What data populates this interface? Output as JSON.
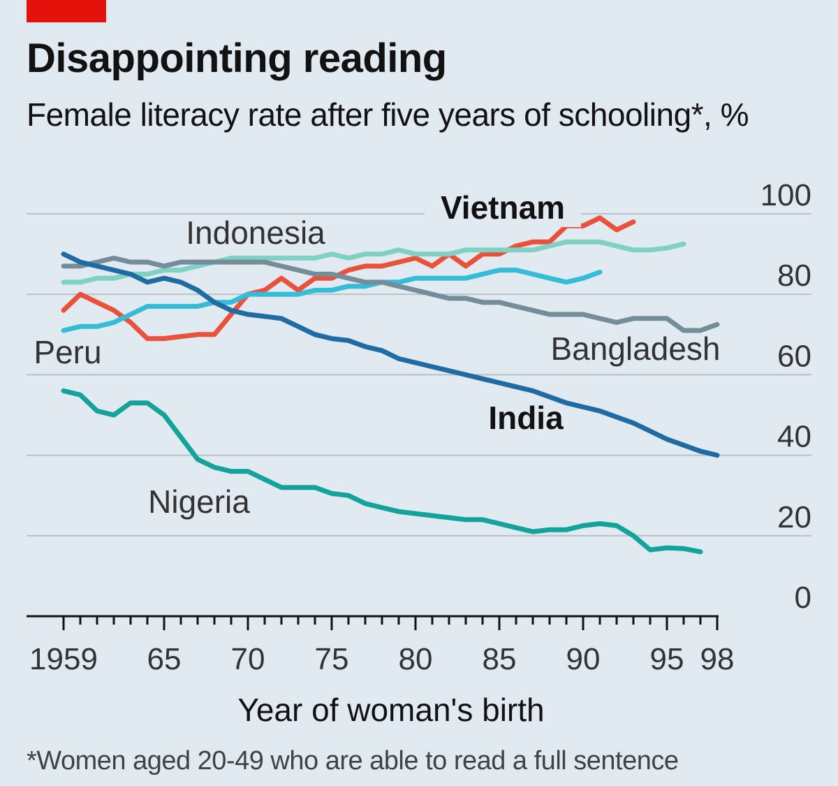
{
  "header": {
    "title": "Disappointing reading",
    "subtitle": "Female literacy rate after five years of schooling*, %"
  },
  "footnote": "*Women aged 20-49 who are able to read a full sentence",
  "colors": {
    "accent": "#e3120b",
    "background": "#e2eaf1"
  },
  "chart_data": {
    "type": "line",
    "title": "Disappointing reading",
    "subtitle": "Female literacy rate after five years of schooling*, %",
    "xlabel": "Year of woman's birth",
    "ylabel": "%",
    "xlim": [
      1959,
      1998
    ],
    "ylim": [
      0,
      100
    ],
    "grid": true,
    "y_ticks": [
      0,
      20,
      40,
      60,
      80,
      100
    ],
    "y_tick_labels": [
      "0",
      "20",
      "40",
      "60",
      "80",
      "100"
    ],
    "x_ticks": [
      1959,
      1965,
      1970,
      1975,
      1980,
      1985,
      1990,
      1995,
      1998
    ],
    "x_tick_labels": [
      "1959",
      "65",
      "70",
      "75",
      "80",
      "85",
      "90",
      "95",
      "98"
    ],
    "series": [
      {
        "name": "Vietnam",
        "label": "Vietnam",
        "color": "#e9513a",
        "bold": true,
        "x": [
          1959,
          1960,
          1961,
          1962,
          1963,
          1964,
          1965,
          1966,
          1967,
          1968,
          1969,
          1970,
          1971,
          1972,
          1973,
          1974,
          1975,
          1976,
          1977,
          1978,
          1979,
          1980,
          1981,
          1982,
          1983,
          1984,
          1985,
          1986,
          1987,
          1988,
          1989,
          1990,
          1991,
          1992,
          1993
        ],
        "y": [
          76,
          80,
          78,
          76,
          73,
          69,
          69,
          69.5,
          70,
          70,
          75,
          80,
          81,
          84,
          81,
          84,
          84,
          86,
          87,
          87,
          88,
          89,
          87,
          90,
          87,
          90,
          90,
          92,
          93,
          93,
          97,
          97,
          99,
          96,
          98
        ]
      },
      {
        "name": "Indonesia",
        "label": "Indonesia",
        "color": "#7fd1c3",
        "bold": false,
        "x": [
          1959,
          1960,
          1961,
          1962,
          1963,
          1964,
          1965,
          1966,
          1967,
          1968,
          1969,
          1970,
          1971,
          1972,
          1973,
          1974,
          1975,
          1976,
          1977,
          1978,
          1979,
          1980,
          1981,
          1982,
          1983,
          1984,
          1985,
          1986,
          1987,
          1988,
          1989,
          1990,
          1991,
          1992,
          1993,
          1994,
          1995,
          1996
        ],
        "y": [
          83,
          83,
          84,
          84,
          85,
          85,
          86,
          86,
          87,
          88,
          89,
          89,
          89,
          89,
          89,
          89,
          90,
          89,
          90,
          90,
          91,
          90,
          90,
          90,
          91,
          91,
          91,
          91,
          91,
          92,
          93,
          93,
          93,
          92,
          91,
          91,
          91.5,
          92.5
        ]
      },
      {
        "name": "Peru",
        "label": "Peru",
        "color": "#35bdd7",
        "bold": false,
        "x": [
          1959,
          1960,
          1961,
          1962,
          1963,
          1964,
          1965,
          1966,
          1967,
          1968,
          1969,
          1970,
          1971,
          1972,
          1973,
          1974,
          1975,
          1976,
          1977,
          1978,
          1979,
          1980,
          1981,
          1982,
          1983,
          1984,
          1985,
          1986,
          1987,
          1988,
          1989,
          1990,
          1991
        ],
        "y": [
          71,
          72,
          72,
          73,
          75,
          77,
          77,
          77,
          77,
          78,
          78,
          80,
          80,
          80,
          80,
          81,
          81,
          82,
          82,
          83,
          83,
          84,
          84,
          84,
          84,
          85,
          86,
          86,
          85,
          84,
          83,
          84,
          85.5
        ]
      },
      {
        "name": "Bangladesh",
        "label": "Bangladesh",
        "color": "#758d99",
        "bold": false,
        "x": [
          1959,
          1960,
          1961,
          1962,
          1963,
          1964,
          1965,
          1966,
          1967,
          1968,
          1969,
          1970,
          1971,
          1972,
          1973,
          1974,
          1975,
          1976,
          1977,
          1978,
          1979,
          1980,
          1981,
          1982,
          1983,
          1984,
          1985,
          1986,
          1987,
          1988,
          1989,
          1990,
          1991,
          1992,
          1993,
          1994,
          1995,
          1996,
          1997,
          1998
        ],
        "y": [
          87,
          87,
          88,
          89,
          88,
          88,
          87,
          88,
          88,
          88,
          88,
          88,
          88,
          87,
          86,
          85,
          85,
          84,
          83,
          83,
          82,
          81,
          80,
          79,
          79,
          78,
          78,
          77,
          76,
          75,
          75,
          75,
          74,
          73,
          74,
          74,
          74,
          71,
          71,
          72.5
        ]
      },
      {
        "name": "India",
        "label": "India",
        "color": "#1f6ba3",
        "bold": true,
        "x": [
          1959,
          1960,
          1961,
          1962,
          1963,
          1964,
          1965,
          1966,
          1967,
          1968,
          1969,
          1970,
          1971,
          1972,
          1973,
          1974,
          1975,
          1976,
          1977,
          1978,
          1979,
          1980,
          1981,
          1982,
          1983,
          1984,
          1985,
          1986,
          1987,
          1988,
          1989,
          1990,
          1991,
          1992,
          1993,
          1994,
          1995,
          1996,
          1997,
          1998
        ],
        "y": [
          90,
          88,
          87,
          86,
          85,
          83,
          84,
          83,
          81,
          78,
          76,
          75,
          74.5,
          74,
          72,
          70,
          69,
          68.5,
          67,
          66,
          64,
          63,
          62,
          61,
          60,
          59,
          58,
          57,
          56,
          54.5,
          53,
          52,
          51,
          49.5,
          48,
          46,
          44,
          42.5,
          41,
          40
        ]
      },
      {
        "name": "Nigeria",
        "label": "Nigeria",
        "color": "#14a39a",
        "bold": false,
        "x": [
          1959,
          1960,
          1961,
          1962,
          1963,
          1964,
          1965,
          1966,
          1967,
          1968,
          1969,
          1970,
          1971,
          1972,
          1973,
          1974,
          1975,
          1976,
          1977,
          1978,
          1979,
          1980,
          1981,
          1982,
          1983,
          1984,
          1985,
          1986,
          1987,
          1988,
          1989,
          1990,
          1991,
          1992,
          1993,
          1994,
          1995,
          1996,
          1997
        ],
        "y": [
          56,
          55,
          51,
          50,
          53,
          53,
          50,
          44.5,
          39,
          37,
          36,
          36,
          34,
          32,
          32,
          32,
          30.5,
          30,
          28,
          27,
          26,
          25.5,
          25,
          24.5,
          24,
          24,
          23,
          22,
          21,
          21.5,
          21.5,
          22.5,
          23,
          22.5,
          20,
          16.5,
          17,
          16.8,
          16
        ]
      }
    ]
  }
}
